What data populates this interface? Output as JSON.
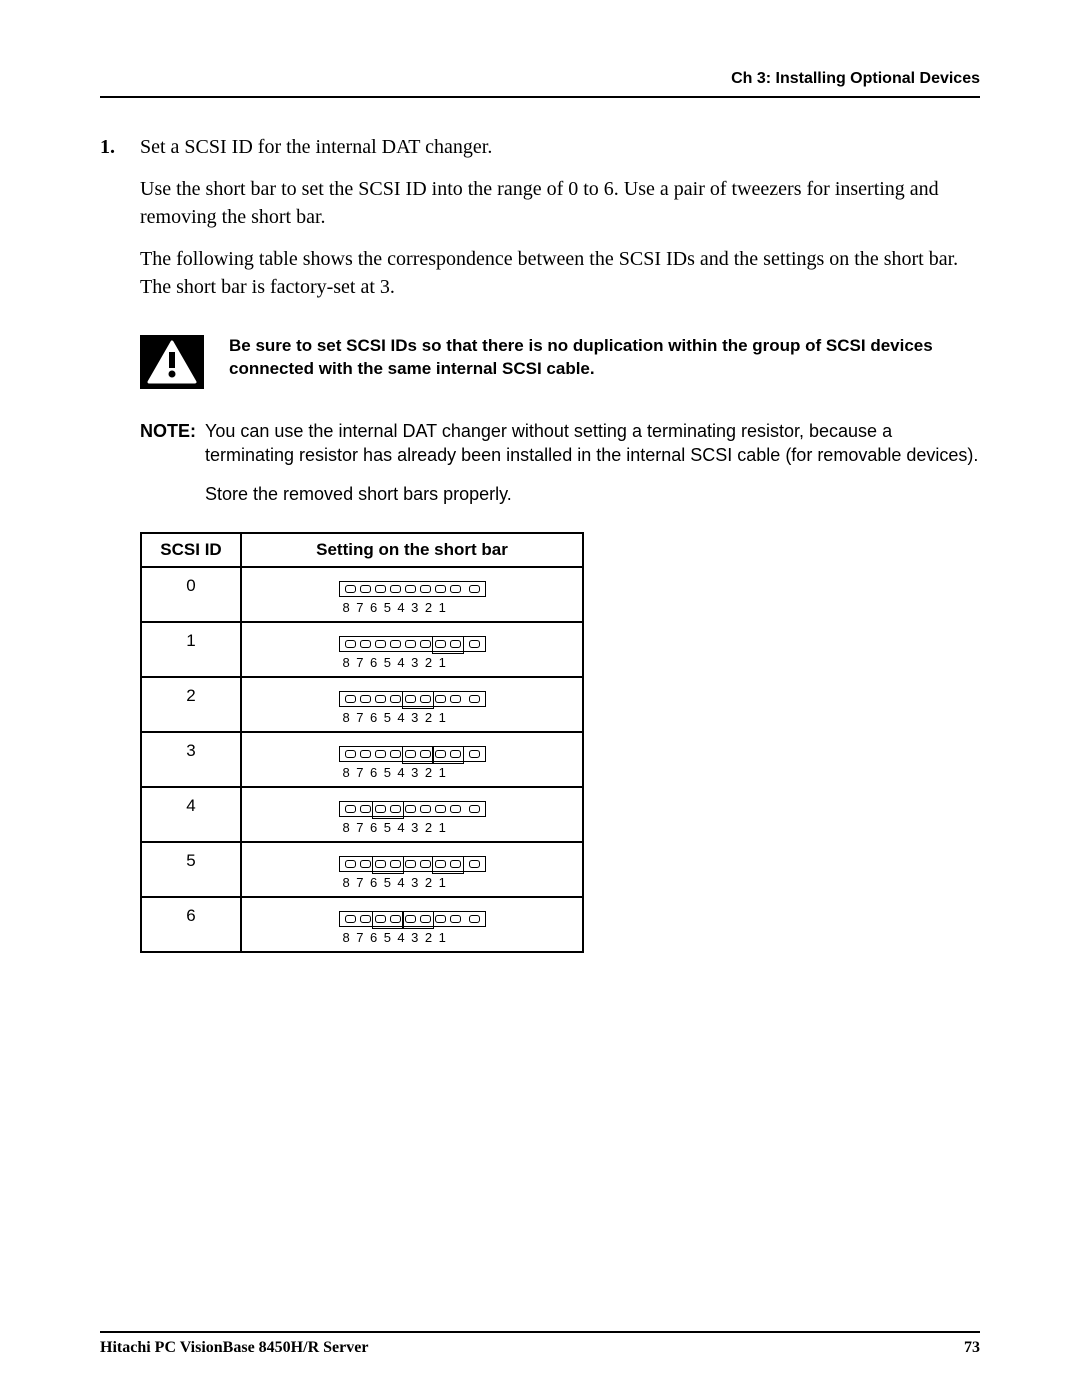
{
  "header": {
    "chapter": "Ch 3: Installing Optional Devices"
  },
  "step": {
    "number": "1.",
    "p1": "Set a SCSI ID for the internal DAT changer.",
    "p2": "Use the short bar to set the SCSI ID into the range of 0 to 6. Use a pair of tweezers for inserting and removing the short bar.",
    "p3": "The following table shows the correspondence between the SCSI IDs and the settings on the short bar. The short bar is factory-set at 3."
  },
  "warning": "Be sure to set SCSI IDs so that there is no duplication within the group of SCSI devices connected with the same internal SCSI cable.",
  "note": {
    "label": "NOTE:",
    "p1": "You can use the internal DAT changer without setting a terminating resistor, because a terminating resistor has already been installed in the internal SCSI cable (for removable devices).",
    "p2": "Store the removed short bars properly."
  },
  "table": {
    "col1": "SCSI ID",
    "col2": "Setting on the short bar",
    "numbers": "87654321",
    "rows": [
      {
        "id": "0",
        "jumpers": []
      },
      {
        "id": "1",
        "jumpers": [
          [
            6,
            7
          ]
        ]
      },
      {
        "id": "2",
        "jumpers": [
          [
            4,
            5
          ]
        ]
      },
      {
        "id": "3",
        "jumpers": [
          [
            4,
            5
          ],
          [
            6,
            7
          ]
        ]
      },
      {
        "id": "4",
        "jumpers": [
          [
            2,
            3
          ]
        ]
      },
      {
        "id": "5",
        "jumpers": [
          [
            2,
            3
          ],
          [
            6,
            7
          ]
        ]
      },
      {
        "id": "6",
        "jumpers": [
          [
            2,
            3
          ],
          [
            4,
            5
          ]
        ]
      }
    ]
  },
  "footer": {
    "title": "Hitachi PC VisionBase 8450H/R Server",
    "page": "73"
  },
  "colors": {
    "text": "#000000",
    "bg": "#ffffff"
  }
}
